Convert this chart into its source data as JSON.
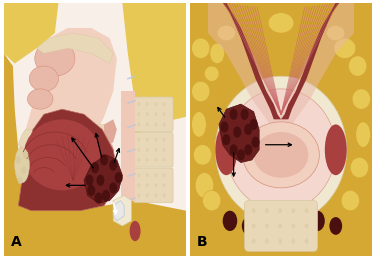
{
  "label_A": "A",
  "label_B": "B",
  "label_fontsize": 10,
  "fig_width": 3.76,
  "fig_height": 2.59,
  "dpi": 100,
  "background_color": "#ffffff",
  "colors": {
    "yellow_fat": "#D4A832",
    "yellow_fat2": "#E8C855",
    "yellow_fat_light": "#EED878",
    "skin_light": "#F0C8B8",
    "skin_medium": "#D4907A",
    "skin_dark": "#B87060",
    "pink_light": "#F2D0C0",
    "pink_medium": "#E0A898",
    "muscle_dark": "#8C3030",
    "muscle_medium": "#A84040",
    "muscle_light": "#C86868",
    "tumor": "#6B1E1E",
    "tumor_nodule": "#4A1010",
    "bone_cream": "#E8D8B8",
    "bone_cream2": "#D8C8A0",
    "cartilage_blue": "#B8C8D8",
    "cartilage_light": "#C8D8E8",
    "white_str": "#FFFFFF",
    "black": "#000000",
    "pale_pink": "#F4D8D0",
    "blush": "#E8B8A8",
    "deep_red": "#7A2020",
    "salmon": "#E09080",
    "cream": "#F0E8D0",
    "tonsil_cream": "#E0D0A8"
  }
}
